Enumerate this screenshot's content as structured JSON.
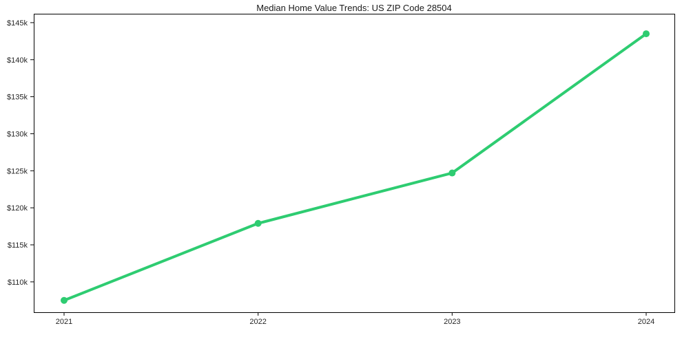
{
  "chart_data": {
    "type": "line",
    "title": "Median Home Value Trends: US ZIP Code 28504",
    "categories": [
      "2021",
      "2022",
      "2023",
      "2024"
    ],
    "series": [
      {
        "name": "Median Home Value",
        "values": [
          107500,
          117900,
          124700,
          143500
        ],
        "color": "#2ecc71"
      }
    ],
    "y_ticks": [
      {
        "value": 110000,
        "label": "$110k"
      },
      {
        "value": 115000,
        "label": "$115k"
      },
      {
        "value": 120000,
        "label": "$120k"
      },
      {
        "value": 125000,
        "label": "$125k"
      },
      {
        "value": 130000,
        "label": "$130k"
      },
      {
        "value": 135000,
        "label": "$135k"
      },
      {
        "value": 140000,
        "label": "$140k"
      },
      {
        "value": 145000,
        "label": "$145k"
      }
    ],
    "ylim": [
      105900,
      146200
    ],
    "xlabel": "",
    "ylabel": "",
    "grid": false,
    "legend_position": "none",
    "axis_color": "#000000",
    "tick_label_color": "#262626",
    "title_color": "#1a1a1a",
    "marker": "circle",
    "line_width": 4,
    "marker_radius": 5
  }
}
